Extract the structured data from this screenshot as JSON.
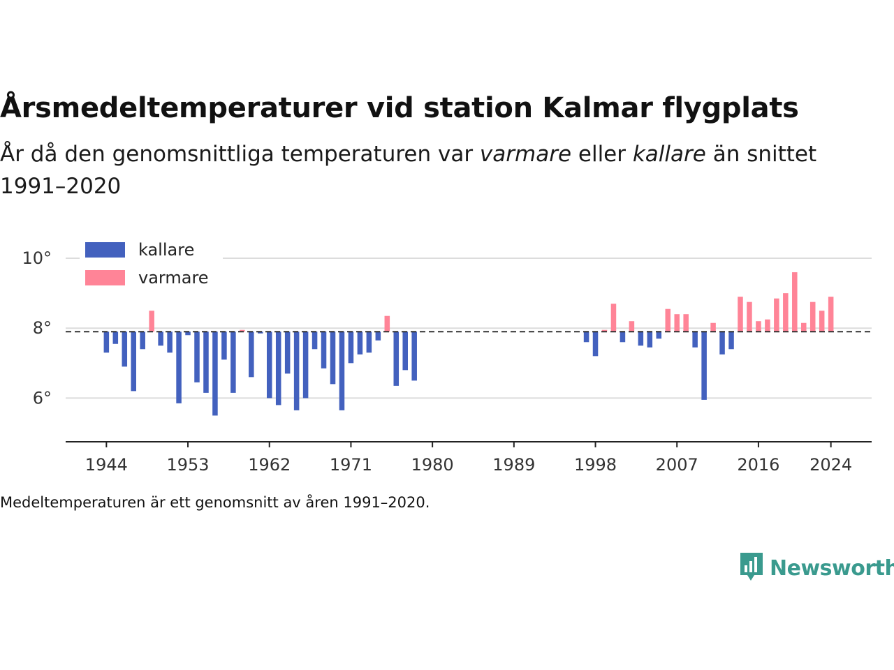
{
  "header": {
    "title": "Årsmedeltemperaturer vid station Kalmar flygplats",
    "subtitle_before": "År då den genomsnittliga temperaturen var ",
    "subtitle_warm": "varmare",
    "subtitle_mid": " eller ",
    "subtitle_cold": "kallare",
    "subtitle_after": " än snittet 1991–2020"
  },
  "footer": {
    "note": "Medeltemperaturen är ett genomsnitt av åren 1991–2020.",
    "brand": "Newsworthy"
  },
  "colors": {
    "cold": "#4361be",
    "warm": "#ff8497",
    "grid": "#dcdcdc",
    "axis": "#222222",
    "baseline": "#333333",
    "brand": "#3a9a8e"
  },
  "chart_data": {
    "type": "bar",
    "baseline": 7.9,
    "ylim": [
      4.75,
      10.6
    ],
    "xlim": [
      1939.5,
      2028.5
    ],
    "yticks": [
      6,
      8,
      10
    ],
    "ytick_labels": [
      "6°",
      "8°",
      "10°"
    ],
    "xticks": [
      1944,
      1953,
      1962,
      1971,
      1980,
      1989,
      1998,
      2007,
      2016,
      2024
    ],
    "grid": true,
    "legend_position": "top-left",
    "series": [
      {
        "name": "kallare",
        "color_key": "cold",
        "points": [
          [
            1944,
            7.3
          ],
          [
            1945,
            7.55
          ],
          [
            1946,
            6.9
          ],
          [
            1947,
            6.2
          ],
          [
            1948,
            7.4
          ],
          [
            1950,
            7.5
          ],
          [
            1951,
            7.3
          ],
          [
            1952,
            5.85
          ],
          [
            1953,
            7.8
          ],
          [
            1954,
            6.45
          ],
          [
            1955,
            6.15
          ],
          [
            1956,
            5.5
          ],
          [
            1957,
            7.1
          ],
          [
            1958,
            6.15
          ],
          [
            1960,
            6.6
          ],
          [
            1961,
            7.85
          ],
          [
            1962,
            6.0
          ],
          [
            1963,
            5.8
          ],
          [
            1964,
            6.7
          ],
          [
            1965,
            5.65
          ],
          [
            1966,
            6.0
          ],
          [
            1967,
            7.4
          ],
          [
            1968,
            6.85
          ],
          [
            1969,
            6.4
          ],
          [
            1970,
            5.65
          ],
          [
            1971,
            7.0
          ],
          [
            1972,
            7.25
          ],
          [
            1973,
            7.3
          ],
          [
            1974,
            7.65
          ],
          [
            1976,
            6.35
          ],
          [
            1977,
            6.8
          ],
          [
            1978,
            6.5
          ],
          [
            1997,
            7.6
          ],
          [
            1998,
            7.2
          ],
          [
            2001,
            7.6
          ],
          [
            2003,
            7.5
          ],
          [
            2004,
            7.45
          ],
          [
            2005,
            7.7
          ],
          [
            2009,
            7.45
          ],
          [
            2010,
            5.95
          ],
          [
            2012,
            7.25
          ],
          [
            2013,
            7.4
          ]
        ]
      },
      {
        "name": "varmare",
        "color_key": "warm",
        "points": [
          [
            1949,
            8.5
          ],
          [
            1959,
            7.95
          ],
          [
            1975,
            8.35
          ],
          [
            1999,
            7.95
          ],
          [
            2000,
            8.7
          ],
          [
            2002,
            8.2
          ],
          [
            2006,
            8.55
          ],
          [
            2007,
            8.4
          ],
          [
            2008,
            8.4
          ],
          [
            2011,
            8.15
          ],
          [
            2014,
            8.9
          ],
          [
            2015,
            8.75
          ],
          [
            2016,
            8.2
          ],
          [
            2017,
            8.25
          ],
          [
            2018,
            8.85
          ],
          [
            2019,
            9.0
          ],
          [
            2020,
            9.6
          ],
          [
            2021,
            8.15
          ],
          [
            2022,
            8.75
          ],
          [
            2023,
            8.5
          ],
          [
            2024,
            8.9
          ]
        ]
      }
    ]
  }
}
